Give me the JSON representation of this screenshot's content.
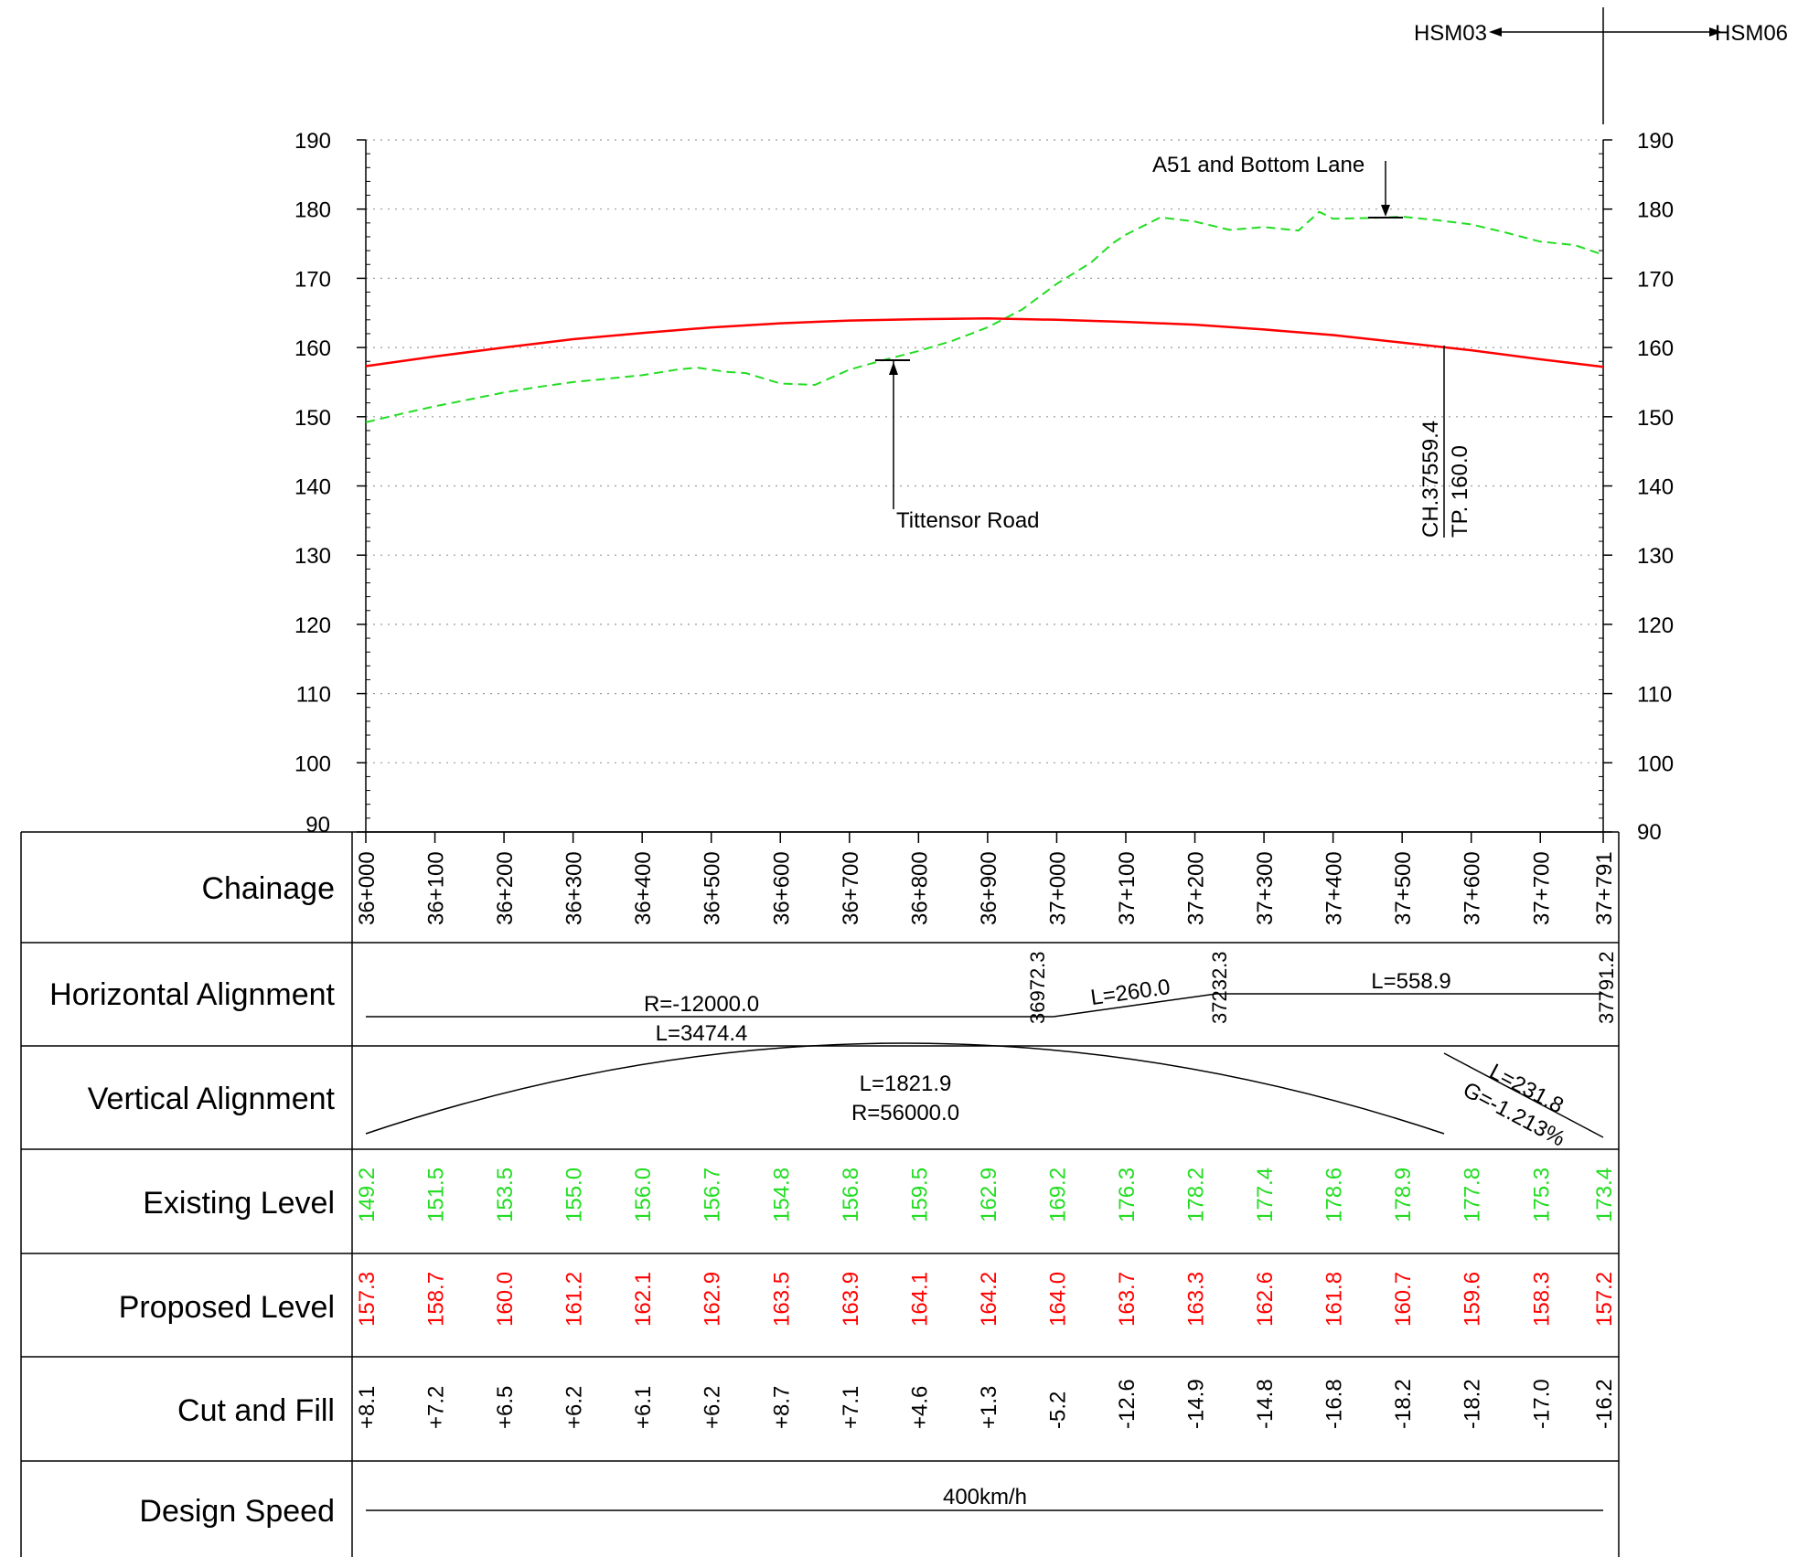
{
  "markers": {
    "left": "HSM03",
    "right": "HSM06"
  },
  "colors": {
    "existing": "#22dd22",
    "proposed": "#ff0000",
    "line": "#000000",
    "grid": "#999999"
  },
  "annotations": {
    "a51": "A51 and Bottom Lane",
    "tittensor": "Tittensor Road",
    "tp_ch": "CH.37559.4",
    "tp_level": "TP. 160.0"
  },
  "row_labels": {
    "chainage": "Chainage",
    "horizontal": "Horizontal Alignment",
    "vertical": "Vertical Alignment",
    "existing": "Existing Level",
    "proposed": "Proposed Level",
    "cutfill": "Cut and Fill",
    "speed": "Design Speed"
  },
  "horizontal_alignment": {
    "curve_r": "R=-12000.0",
    "curve_l": "L=3474.4",
    "transition_l": "L=260.0",
    "straight_l": "L=558.9",
    "ch_1": "36972.3",
    "ch_2": "37232.3",
    "ch_3": "37791.2"
  },
  "vertical_alignment": {
    "curve_l": "L=1821.9",
    "curve_r": "R=56000.0",
    "grade_l": "L=231.8",
    "grade_g": "G=-1.213%"
  },
  "design_speed": "400km/h",
  "chart_data": {
    "type": "line",
    "ylim": [
      90,
      190
    ],
    "y_ticks": [
      "190",
      "180",
      "170",
      "160",
      "150",
      "140",
      "130",
      "120",
      "110",
      "100",
      "90"
    ],
    "chainage_labels": [
      "36+000",
      "36+100",
      "36+200",
      "36+300",
      "36+400",
      "36+500",
      "36+600",
      "36+700",
      "36+800",
      "36+900",
      "37+000",
      "37+100",
      "37+200",
      "37+300",
      "37+400",
      "37+500",
      "37+600",
      "37+700",
      "37+791"
    ],
    "chainage_values": [
      36000,
      36100,
      36200,
      36300,
      36400,
      36500,
      36600,
      36700,
      36800,
      36900,
      37000,
      37100,
      37200,
      37300,
      37400,
      37500,
      37600,
      37700,
      37791
    ],
    "existing_level": [
      "149.2",
      "151.5",
      "153.5",
      "155.0",
      "156.0",
      "156.7",
      "154.8",
      "156.8",
      "159.5",
      "162.9",
      "169.2",
      "176.3",
      "178.2",
      "177.4",
      "178.6",
      "178.9",
      "177.8",
      "175.3",
      "173.4"
    ],
    "proposed_level": [
      "157.3",
      "158.7",
      "160.0",
      "161.2",
      "162.1",
      "162.9",
      "163.5",
      "163.9",
      "164.1",
      "164.2",
      "164.0",
      "163.7",
      "163.3",
      "162.6",
      "161.8",
      "160.7",
      "159.6",
      "158.3",
      "157.2"
    ],
    "cut_fill": [
      "+8.1",
      "+7.2",
      "+6.5",
      "+6.2",
      "+6.1",
      "+6.2",
      "+8.7",
      "+7.1",
      "+4.6",
      "+1.3",
      "-5.2",
      "-12.6",
      "-14.9",
      "-14.8",
      "-16.8",
      "-18.2",
      "-18.2",
      "-17.0",
      "-16.2"
    ],
    "series": [
      {
        "name": "Existing Level",
        "color": "#22dd22",
        "dashed": true,
        "x": [
          36000,
          36050,
          36100,
          36150,
          36200,
          36250,
          36300,
          36350,
          36400,
          36450,
          36480,
          36520,
          36550,
          36600,
          36650,
          36700,
          36750,
          36800,
          36850,
          36900,
          36950,
          37000,
          37050,
          37080,
          37100,
          37150,
          37200,
          37250,
          37300,
          37350,
          37380,
          37400,
          37450,
          37500,
          37550,
          37600,
          37650,
          37700,
          37750,
          37791
        ],
        "y": [
          149.2,
          150.4,
          151.5,
          152.5,
          153.5,
          154.3,
          155.0,
          155.5,
          156.0,
          156.8,
          157.1,
          156.5,
          156.3,
          154.8,
          154.6,
          156.8,
          158.2,
          159.5,
          161.0,
          162.9,
          165.5,
          169.2,
          172.3,
          175.0,
          176.3,
          178.8,
          178.2,
          177.0,
          177.4,
          176.9,
          179.6,
          178.6,
          178.7,
          178.9,
          178.4,
          177.8,
          176.6,
          175.3,
          174.8,
          173.4
        ]
      },
      {
        "name": "Proposed Level",
        "color": "#ff0000",
        "dashed": false,
        "x": [
          36000,
          36100,
          36200,
          36300,
          36400,
          36500,
          36600,
          36700,
          36800,
          36900,
          37000,
          37100,
          37200,
          37300,
          37400,
          37500,
          37600,
          37700,
          37791
        ],
        "y": [
          157.3,
          158.7,
          160.0,
          161.2,
          162.1,
          162.9,
          163.5,
          163.9,
          164.1,
          164.2,
          164.0,
          163.7,
          163.3,
          162.6,
          161.8,
          160.7,
          159.6,
          158.3,
          157.2
        ]
      }
    ]
  }
}
